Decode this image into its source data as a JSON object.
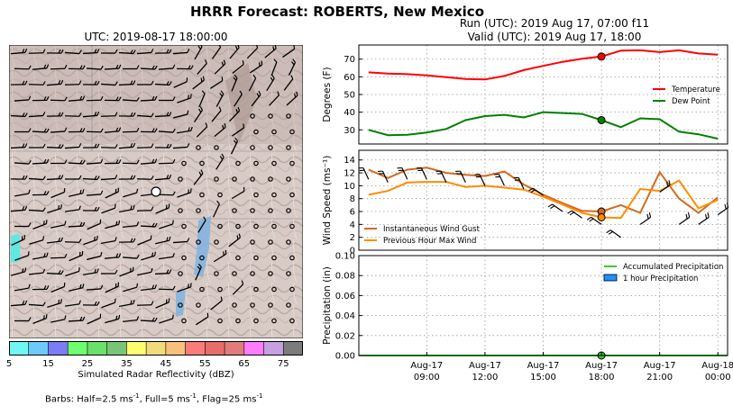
{
  "title": "HRRR Forecast: ROBERTS, New Mexico",
  "map": {
    "title": "UTC: 2019-08-17 18:00:00",
    "colorbar": {
      "ticks": [
        "5",
        "15",
        "25",
        "35",
        "45",
        "55",
        "65",
        "75"
      ],
      "colors": [
        "#6ff7f3",
        "#6ccbf8",
        "#7c7cf5",
        "#70fd70",
        "#6ce06c",
        "#77c677",
        "#fefe70",
        "#f1dc7c",
        "#f8c07d",
        "#f87c7c",
        "#e86c6c",
        "#e07c7c",
        "#fe7cfe",
        "#c6a0e0",
        "#7c7c7c"
      ],
      "label": "Simulated Radar Reflectivity (dBZ)"
    },
    "barbs_caption_parts": [
      "Barbs: Half=2.5 ms",
      "-1",
      ", Full=5 ms",
      "-1",
      ", Flag=25 ms",
      "-1"
    ]
  },
  "run_info": {
    "run": "Run (UTC): 2019 Aug 17, 07:00 f11",
    "valid": "Valid (UTC): 2019 Aug 17, 18:00"
  },
  "chart_data": [
    {
      "type": "line",
      "ylabel": "Degrees (F)",
      "ylim": [
        22,
        78
      ],
      "yticks": [
        30,
        40,
        50,
        60,
        70
      ],
      "x_hours": [
        6,
        7,
        8,
        9,
        10,
        11,
        12,
        13,
        14,
        15,
        16,
        17,
        18,
        19,
        20,
        21,
        22,
        23,
        24
      ],
      "series": [
        {
          "name": "Temperature",
          "color": "#ff0000",
          "values": [
            62.5,
            61.8,
            61.5,
            60.8,
            59.8,
            58.8,
            58.5,
            60.5,
            63.8,
            66.2,
            68.5,
            70.2,
            71.5,
            74.8,
            75,
            74,
            75,
            73.2,
            72.5
          ]
        },
        {
          "name": "Dew Point",
          "color": "#008000",
          "values": [
            30,
            27,
            27.2,
            28.5,
            30.5,
            35.5,
            37.8,
            38.5,
            37,
            40,
            39.5,
            39,
            35.5,
            31.5,
            36.5,
            36,
            29,
            27.5,
            25
          ]
        }
      ],
      "marker_hour": 18,
      "grid": true,
      "legend": "right"
    },
    {
      "type": "line",
      "ylabel": "Wind Speed (ms⁻¹)",
      "ylim": [
        0,
        15.5
      ],
      "yticks": [
        0,
        2,
        4,
        6,
        8,
        10,
        12,
        14
      ],
      "x_hours": [
        6,
        7,
        8,
        9,
        10,
        11,
        12,
        13,
        14,
        15,
        16,
        17,
        18,
        19,
        20,
        21,
        22,
        23,
        24
      ],
      "series": [
        {
          "name": "Instantaneous Wind Gust",
          "color": "#d2691e",
          "values": [
            12.5,
            11.2,
            12.5,
            12.8,
            12,
            11.7,
            11.5,
            12.2,
            10.2,
            8.6,
            7.3,
            6.1,
            6,
            7,
            5.8,
            12.1,
            8,
            5.8,
            8.2
          ]
        },
        {
          "name": "Previous Hour Max Wind",
          "color": "#ff8c00",
          "values": [
            8.6,
            9.2,
            10.5,
            10.6,
            10.6,
            9.8,
            10,
            9.7,
            9.4,
            8.3,
            7.1,
            5.8,
            5.1,
            5,
            9.5,
            9.2,
            10.8,
            6.5,
            7.8
          ]
        }
      ],
      "marker_hour": 18,
      "grid": true,
      "legend": "bottom-left"
    },
    {
      "type": "bar",
      "ylabel": "Precipitation (in)",
      "ylim": [
        0,
        0.1
      ],
      "yticks": [
        "0.00",
        "0.02",
        "0.04",
        "0.06",
        "0.08",
        "0.10"
      ],
      "series": [
        {
          "name": "Accumulated Precipitation",
          "color": "#33cc33",
          "values": [
            0,
            0,
            0,
            0,
            0,
            0,
            0,
            0,
            0,
            0,
            0,
            0,
            0,
            0,
            0,
            0,
            0,
            0,
            0
          ]
        },
        {
          "name": "1 hour Precipitation",
          "color": "#1e90ff",
          "values": [
            0,
            0,
            0,
            0,
            0,
            0,
            0,
            0,
            0,
            0,
            0,
            0,
            0,
            0,
            0,
            0,
            0,
            0,
            0
          ]
        }
      ],
      "marker_hour": 18,
      "grid": true,
      "legend": "top-right",
      "x_ticks": [
        {
          "hour": 9,
          "day": "Aug-17",
          "time": "09:00"
        },
        {
          "hour": 12,
          "day": "Aug-17",
          "time": "12:00"
        },
        {
          "hour": 15,
          "day": "Aug-17",
          "time": "15:00"
        },
        {
          "hour": 18,
          "day": "Aug-17",
          "time": "18:00"
        },
        {
          "hour": 21,
          "day": "Aug-17",
          "time": "21:00"
        },
        {
          "hour": 24,
          "day": "Aug-18",
          "time": "00:00"
        }
      ]
    }
  ]
}
